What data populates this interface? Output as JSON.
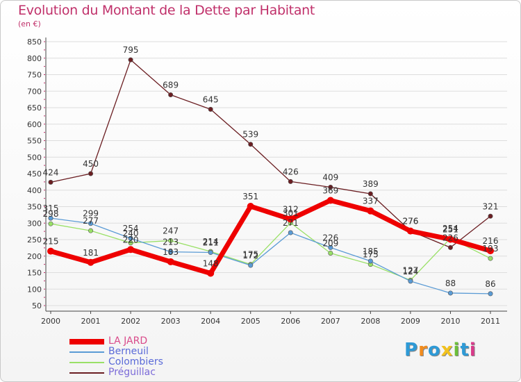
{
  "header": {
    "title": "Evolution du Montant de la Dette par Habitant",
    "subtitle": "(en €)"
  },
  "colors": {
    "title": "#c0306a",
    "axis": "#444444",
    "grid": "#dddddd"
  },
  "chart_data": {
    "type": "line",
    "title": "Evolution du Montant de la Dette par Habitant",
    "subtitle": "(en €)",
    "xlabel": "",
    "ylabel": "",
    "ylim": [
      50,
      850
    ],
    "yticks": [
      50,
      100,
      150,
      200,
      250,
      300,
      350,
      400,
      450,
      500,
      550,
      600,
      650,
      700,
      750,
      800,
      850
    ],
    "x": [
      "2000",
      "2001",
      "2002",
      "2003",
      "2004",
      "2005",
      "2006",
      "2007",
      "2008",
      "2009",
      "2010",
      "2011"
    ],
    "grid": "horizontal",
    "legend_position": "bottom-left",
    "series": [
      {
        "name": "Préguillac",
        "color": "#6b1e22",
        "values": [
          424,
          450,
          795,
          689,
          645,
          539,
          426,
          409,
          389,
          276,
          226,
          321
        ]
      },
      {
        "name": "Colombiers",
        "color": "#99e066",
        "values": [
          298,
          277,
          240,
          247,
          214,
          175,
          301,
          209,
          175,
          127,
          254,
          193
        ]
      },
      {
        "name": "Berneuil",
        "color": "#5a9bd5",
        "values": [
          315,
          299,
          254,
          213,
          211,
          172,
          271,
          226,
          185,
          124,
          88,
          86
        ]
      },
      {
        "name": "LA JARD",
        "color": "#ee0000",
        "values": [
          215,
          181,
          220,
          183,
          148,
          351,
          312,
          369,
          337,
          276,
          251,
          216
        ]
      }
    ]
  },
  "legend": {
    "items": [
      {
        "label": "LA JARD",
        "color": "#ee0000"
      },
      {
        "label": "Berneuil",
        "color": "#5a9bd5"
      },
      {
        "label": "Colombiers",
        "color": "#99e066"
      },
      {
        "label": "Préguillac",
        "color": "#6b1e22"
      }
    ]
  },
  "logo": {
    "letters": [
      {
        "ch": "P",
        "color": "#2e9ad6"
      },
      {
        "ch": "r",
        "color": "#f28c1e"
      },
      {
        "ch": "o",
        "color": "#2e9ad6"
      },
      {
        "ch": "x",
        "color": "#f2c21e"
      },
      {
        "ch": "i",
        "color": "#6cbf3a"
      },
      {
        "ch": "t",
        "color": "#2e9ad6"
      },
      {
        "ch": "i",
        "color": "#d93a8a"
      }
    ]
  }
}
